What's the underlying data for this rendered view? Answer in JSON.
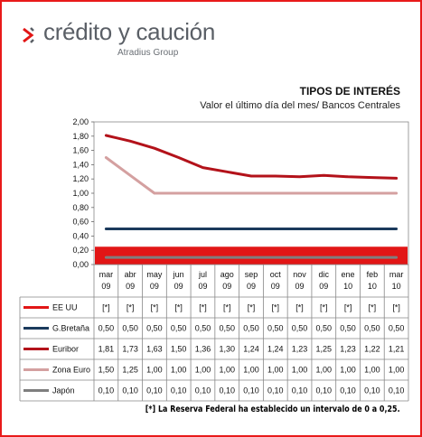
{
  "brand": {
    "name": "crédito y caución",
    "group": "Atradius Group"
  },
  "title": "TIPOS DE INTERÉS",
  "subtitle": "Valor el último  día del mes/ Bancos Centrales",
  "footnote": "[*] La Reserva Federal ha establecido un intervalo de 0 a 0,25.",
  "chart_data": {
    "type": "line",
    "categories": [
      [
        "mar",
        "09"
      ],
      [
        "abr",
        "09"
      ],
      [
        "may",
        "09"
      ],
      [
        "jun",
        "09"
      ],
      [
        "jul",
        "09"
      ],
      [
        "ago",
        "09"
      ],
      [
        "sep",
        "09"
      ],
      [
        "oct",
        "09"
      ],
      [
        "nov",
        "09"
      ],
      [
        "dic",
        "09"
      ],
      [
        "ene",
        "10"
      ],
      [
        "feb",
        "10"
      ],
      [
        "mar",
        "10"
      ]
    ],
    "ylim": [
      0,
      2
    ],
    "yticks": [
      "0,00",
      "0,20",
      "0,40",
      "0,60",
      "0,80",
      "1,00",
      "1,20",
      "1,40",
      "1,60",
      "1,80",
      "2,00"
    ],
    "grid": false,
    "series": [
      {
        "name": "EE UU",
        "color": "#e21616",
        "range": [
          0,
          0.25
        ],
        "labels": [
          "[*]",
          "[*]",
          "[*]",
          "[*]",
          "[*]",
          "[*]",
          "[*]",
          "[*]",
          "[*]",
          "[*]",
          "[*]",
          "[*]",
          "[*]"
        ]
      },
      {
        "name": "G.Bretaña",
        "color": "#1b3a5c",
        "values": [
          0.5,
          0.5,
          0.5,
          0.5,
          0.5,
          0.5,
          0.5,
          0.5,
          0.5,
          0.5,
          0.5,
          0.5,
          0.5
        ],
        "labels": [
          "0,50",
          "0,50",
          "0,50",
          "0,50",
          "0,50",
          "0,50",
          "0,50",
          "0,50",
          "0,50",
          "0,50",
          "0,50",
          "0,50",
          "0,50"
        ]
      },
      {
        "name": "Euribor",
        "color": "#b3121a",
        "values": [
          1.81,
          1.73,
          1.63,
          1.5,
          1.36,
          1.3,
          1.24,
          1.24,
          1.23,
          1.25,
          1.23,
          1.22,
          1.21
        ],
        "labels": [
          "1,81",
          "1,73",
          "1,63",
          "1,50",
          "1,36",
          "1,30",
          "1,24",
          "1,24",
          "1,23",
          "1,25",
          "1,23",
          "1,22",
          "1,21"
        ]
      },
      {
        "name": "Zona Euro",
        "color": "#d4a0a0",
        "values": [
          1.5,
          1.25,
          1.0,
          1.0,
          1.0,
          1.0,
          1.0,
          1.0,
          1.0,
          1.0,
          1.0,
          1.0,
          1.0
        ],
        "labels": [
          "1,50",
          "1,25",
          "1,00",
          "1,00",
          "1,00",
          "1,00",
          "1,00",
          "1,00",
          "1,00",
          "1,00",
          "1,00",
          "1,00",
          "1,00"
        ]
      },
      {
        "name": "Japón",
        "color": "#7f7f7f",
        "values": [
          0.1,
          0.1,
          0.1,
          0.1,
          0.1,
          0.1,
          0.1,
          0.1,
          0.1,
          0.1,
          0.1,
          0.1,
          0.1
        ],
        "labels": [
          "0,10",
          "0,10",
          "0,10",
          "0,10",
          "0,10",
          "0,10",
          "0,10",
          "0,10",
          "0,10",
          "0,10",
          "0,10",
          "0,10",
          "0,10"
        ]
      }
    ]
  }
}
